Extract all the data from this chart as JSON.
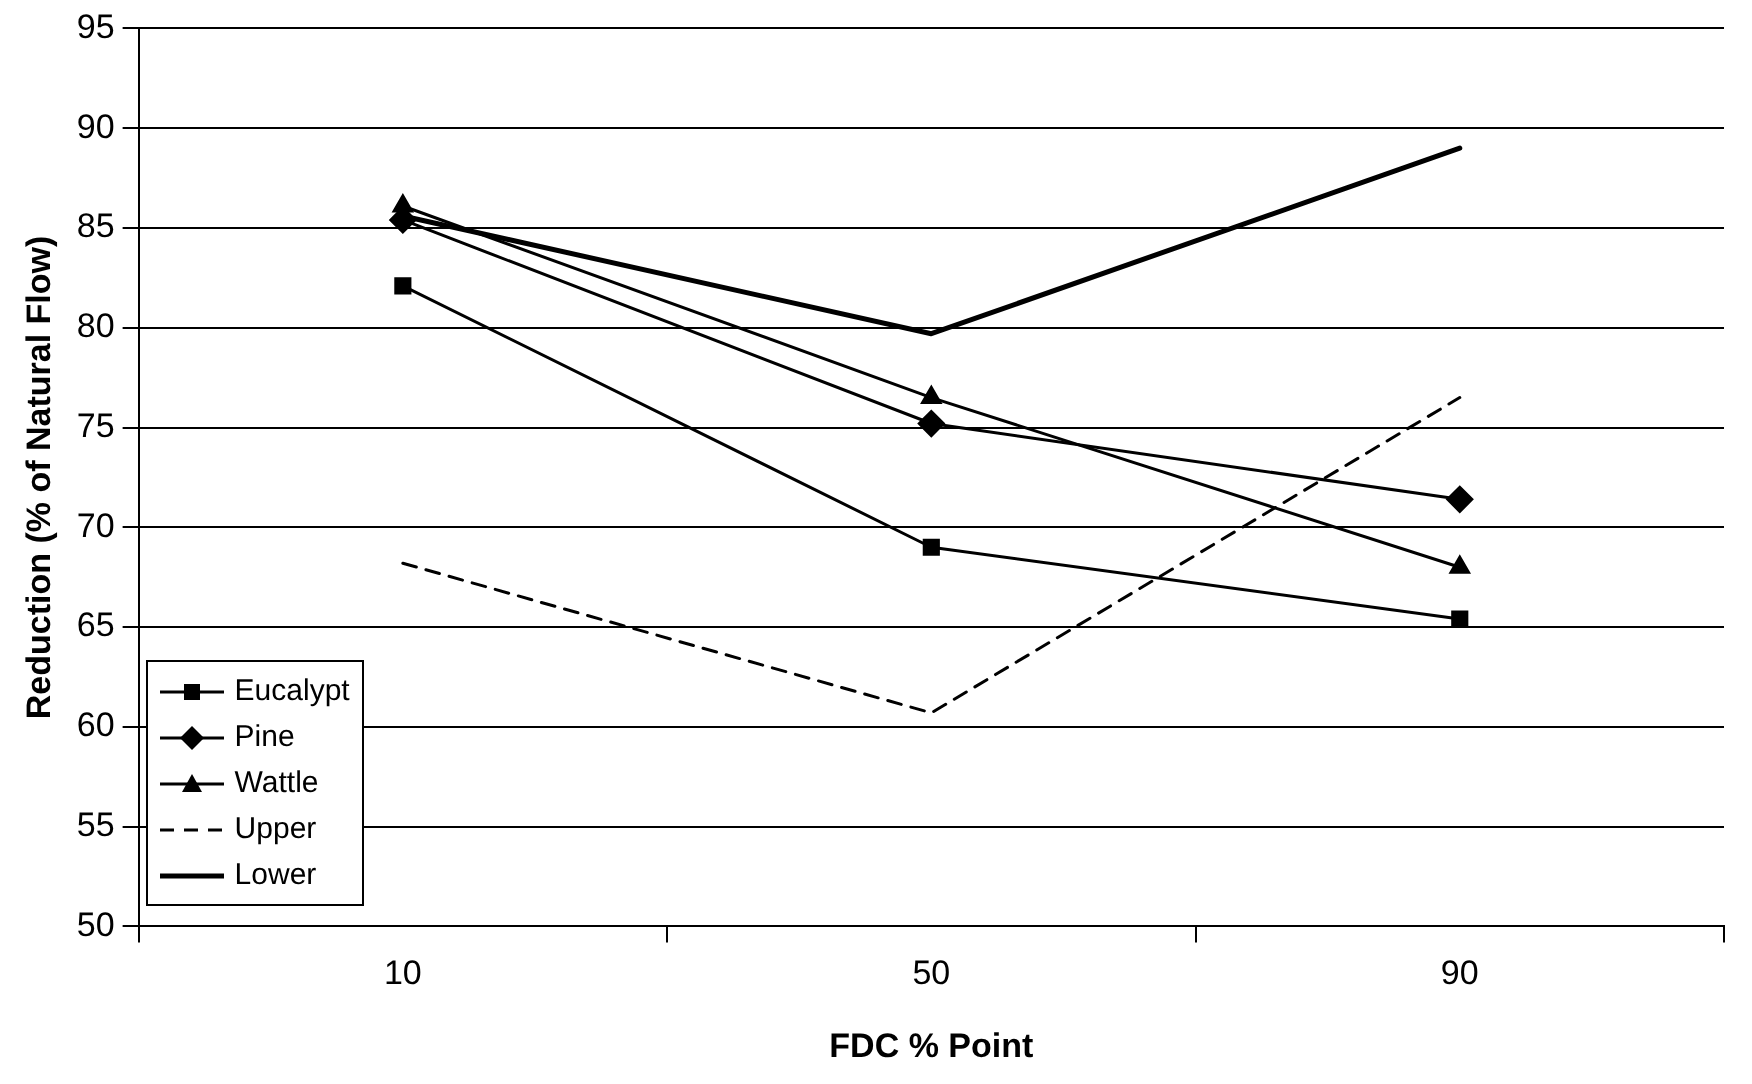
{
  "chart_data": {
    "type": "line",
    "xlabel": "FDC % Point",
    "ylabel": "Reduction (% of Natural Flow)",
    "categories": [
      "10",
      "50",
      "90"
    ],
    "series": [
      {
        "name": "Eucalypt",
        "color": "#000000",
        "values": [
          82.1,
          69.0,
          65.4
        ],
        "marker": "square",
        "line_style": "solid"
      },
      {
        "name": "Pine",
        "color": "#000000",
        "values": [
          85.4,
          75.2,
          71.4
        ],
        "marker": "diamond",
        "line_style": "solid"
      },
      {
        "name": "Wattle",
        "color": "#000000",
        "values": [
          86.1,
          76.5,
          68.0
        ],
        "marker": "triangle",
        "line_style": "solid"
      },
      {
        "name": "Upper",
        "color": "#000000",
        "values": [
          68.2,
          60.7,
          76.5
        ],
        "marker": "none",
        "line_style": "dashed"
      },
      {
        "name": "Lower",
        "color": "#000000",
        "values": [
          85.6,
          79.7,
          89.0
        ],
        "marker": "none",
        "line_style": "solid"
      }
    ],
    "ylim": [
      50,
      95
    ],
    "yticks": [
      50,
      55,
      60,
      65,
      70,
      75,
      80,
      85,
      90,
      95
    ],
    "grid": "y",
    "legend": "bottom left"
  }
}
